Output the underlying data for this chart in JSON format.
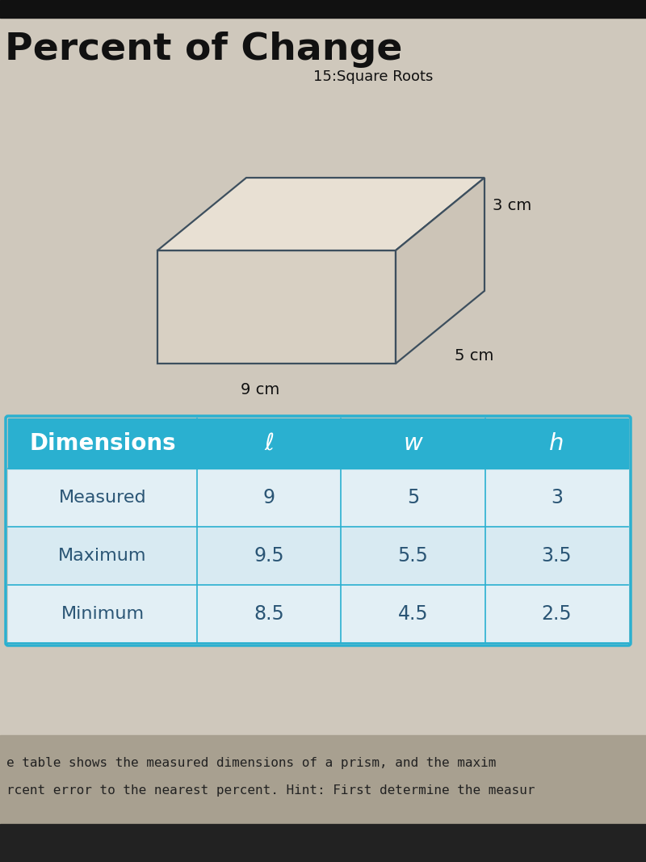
{
  "title_main": "Percent of Change",
  "title_sub": "15:Square Roots",
  "bg_color": "#cfc8bc",
  "table_header_color": "#2ab0d0",
  "table_header_text_color": "#ffffff",
  "table_row_color_odd": "#e2eff5",
  "table_row_color_even": "#d8eaf2",
  "table_border_color": "#2ab0d0",
  "prism_line_color": "#3d4f5e",
  "prism_face_front": "#d8d0c3",
  "prism_face_top": "#e8e0d3",
  "prism_face_right": "#ccc4b7",
  "dim_9cm": "9 cm",
  "dim_5cm": "5 cm",
  "dim_3cm": "3 cm",
  "table_headers": [
    "Dimensions",
    "ℓ",
    "w",
    "h"
  ],
  "table_rows": [
    [
      "Measured",
      "9",
      "5",
      "3"
    ],
    [
      "Maximum",
      "9.5",
      "5.5",
      "3.5"
    ],
    [
      "Minimum",
      "8.5",
      "4.5",
      "2.5"
    ]
  ],
  "footer_text1": "e table shows the measured dimensions of a prism, and the maxim",
  "footer_text2": "rcent error to the nearest percent. Hint: First determine the measur",
  "footer_bg": "#a8a090"
}
